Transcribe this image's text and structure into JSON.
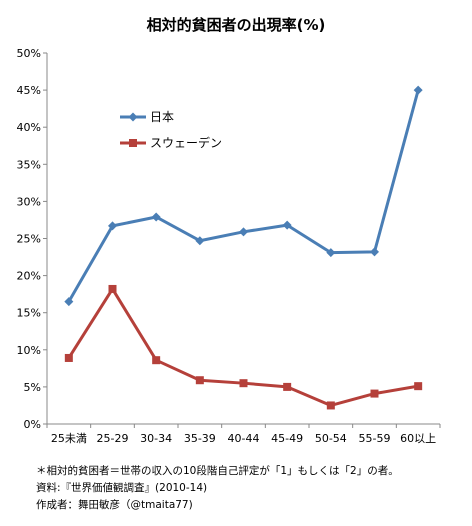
{
  "chart_data": {
    "type": "line",
    "title": "相対的貧困者の出現率(%)",
    "categories": [
      "25未満",
      "25-29",
      "30-34",
      "35-39",
      "40-44",
      "45-49",
      "50-54",
      "55-59",
      "60以上"
    ],
    "series": [
      {
        "name": "日本",
        "color": "#4a7eb5",
        "marker": "diamond",
        "values": [
          16.5,
          26.7,
          27.9,
          24.7,
          25.9,
          26.8,
          23.1,
          23.2,
          45.0
        ]
      },
      {
        "name": "スウェーデン",
        "color": "#b5403a",
        "marker": "square",
        "values": [
          8.9,
          18.2,
          8.6,
          5.9,
          5.5,
          5.0,
          2.5,
          4.1,
          5.1
        ]
      }
    ],
    "ylim": [
      0,
      50
    ],
    "yticks": [
      "0%",
      "5%",
      "10%",
      "15%",
      "20%",
      "25%",
      "30%",
      "35%",
      "40%",
      "45%",
      "50%"
    ],
    "grid": false,
    "legend": "upper-left-inside"
  },
  "notes": [
    "＊相対的貧困者＝世帯の収入の10段階自己評定が「1」もしくは「2」の者。",
    "資料:『世界価値観調査』(2010-14)",
    "作成者：舞田敏彦（@tmaita77)"
  ]
}
